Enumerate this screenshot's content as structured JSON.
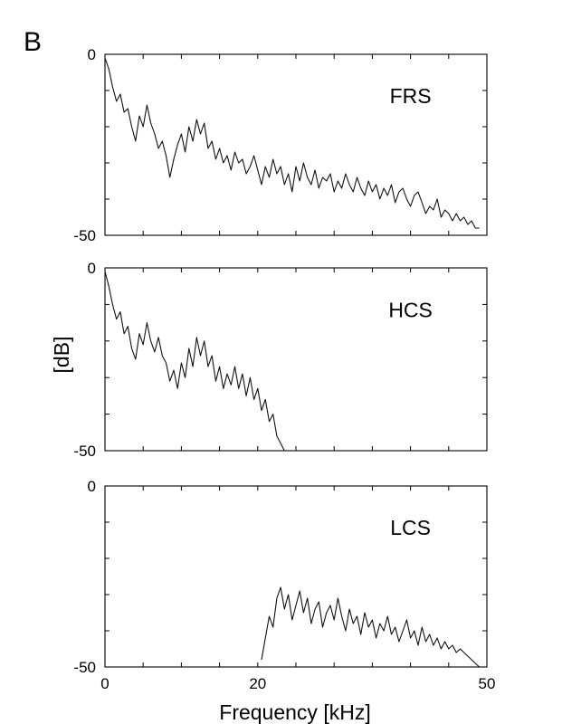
{
  "figure": {
    "panel_letter": "B",
    "ylabel": "[dB]",
    "xlabel": "Frequency [kHz]",
    "line_color": "#111111"
  },
  "chart_data": [
    {
      "type": "line",
      "title": "FRS",
      "xlim": [
        0,
        50
      ],
      "ylim": [
        -50,
        0
      ],
      "x_ticks": [
        0,
        20,
        50
      ],
      "y_ticks": [
        0,
        -50
      ],
      "series": [
        {
          "x": [
            0,
            0.5,
            1,
            1.5,
            2,
            2.5,
            3,
            3.5,
            4,
            4.5,
            5,
            5.5,
            6,
            6.5,
            7,
            7.5,
            8,
            8.5,
            9,
            9.5,
            10,
            10.5,
            11,
            11.5,
            12,
            12.5,
            13,
            13.5,
            14,
            14.5,
            15,
            15.5,
            16,
            16.5,
            17,
            17.5,
            18,
            18.5,
            19,
            19.5,
            20,
            20.5,
            21,
            21.5,
            22,
            22.5,
            23,
            23.5,
            24,
            24.5,
            25,
            25.5,
            26,
            26.5,
            27,
            27.5,
            28,
            28.5,
            29,
            29.5,
            30,
            30.5,
            31,
            31.5,
            32,
            32.5,
            33,
            33.5,
            34,
            34.5,
            35,
            35.5,
            36,
            36.5,
            37,
            37.5,
            38,
            38.5,
            39,
            39.5,
            40,
            40.5,
            41,
            41.5,
            42,
            42.5,
            43,
            43.5,
            44,
            44.5,
            45,
            45.5,
            46,
            46.5,
            47,
            47.5,
            48,
            48.5,
            49
          ],
          "y": [
            -1,
            -4,
            -9,
            -13,
            -11,
            -16,
            -15,
            -20,
            -24,
            -17,
            -20,
            -14,
            -19,
            -22,
            -26,
            -24,
            -28,
            -34,
            -29,
            -25,
            -22,
            -27,
            -20,
            -24,
            -18,
            -22,
            -19,
            -26,
            -24,
            -29,
            -26,
            -30,
            -28,
            -32,
            -27,
            -30,
            -29,
            -33,
            -31,
            -28,
            -32,
            -36,
            -31,
            -34,
            -29,
            -33,
            -31,
            -36,
            -33,
            -38,
            -31,
            -35,
            -30,
            -34,
            -36,
            -32,
            -37,
            -34,
            -35,
            -33,
            -38,
            -35,
            -37,
            -33,
            -36,
            -38,
            -34,
            -37,
            -39,
            -35,
            -38,
            -36,
            -40,
            -37,
            -39,
            -36,
            -41,
            -38,
            -37,
            -40,
            -42,
            -39,
            -38,
            -41,
            -44,
            -42,
            -43,
            -40,
            -45,
            -43,
            -44,
            -46,
            -44,
            -46,
            -45,
            -47,
            -46,
            -48,
            -48
          ]
        }
      ]
    },
    {
      "type": "line",
      "title": "HCS",
      "xlim": [
        0,
        50
      ],
      "ylim": [
        -50,
        0
      ],
      "x_ticks": [
        0,
        20,
        50
      ],
      "y_ticks": [
        0,
        -50
      ],
      "series": [
        {
          "x": [
            0,
            0.5,
            1,
            1.5,
            2,
            2.5,
            3,
            3.5,
            4,
            4.5,
            5,
            5.5,
            6,
            6.5,
            7,
            7.5,
            8,
            8.5,
            9,
            9.5,
            10,
            10.5,
            11,
            11.5,
            12,
            12.5,
            13,
            13.5,
            14,
            14.5,
            15,
            15.5,
            16,
            16.5,
            17,
            17.5,
            18,
            18.5,
            19,
            19.5,
            20,
            20.5,
            21,
            21.5,
            22,
            22.5,
            23,
            23.5
          ],
          "y": [
            -1,
            -5,
            -10,
            -14,
            -12,
            -18,
            -16,
            -22,
            -25,
            -18,
            -21,
            -15,
            -20,
            -23,
            -19,
            -24,
            -26,
            -31,
            -28,
            -33,
            -26,
            -30,
            -22,
            -27,
            -19,
            -24,
            -20,
            -27,
            -24,
            -31,
            -27,
            -33,
            -29,
            -32,
            -27,
            -33,
            -29,
            -35,
            -30,
            -36,
            -33,
            -39,
            -36,
            -42,
            -40,
            -46,
            -48,
            -50
          ]
        }
      ]
    },
    {
      "type": "line",
      "title": "LCS",
      "xlim": [
        0,
        50
      ],
      "ylim": [
        -50,
        0
      ],
      "x_ticks": [
        0,
        20,
        50
      ],
      "y_ticks": [
        0,
        -50
      ],
      "series": [
        {
          "x": [
            20.5,
            21,
            21.5,
            22,
            22.5,
            23,
            23.5,
            24,
            24.5,
            25,
            25.5,
            26,
            26.5,
            27,
            27.5,
            28,
            28.5,
            29,
            29.5,
            30,
            30.5,
            31,
            31.5,
            32,
            32.5,
            33,
            33.5,
            34,
            34.5,
            35,
            35.5,
            36,
            36.5,
            37,
            37.5,
            38,
            38.5,
            39,
            39.5,
            40,
            40.5,
            41,
            41.5,
            42,
            42.5,
            43,
            43.5,
            44,
            44.5,
            45,
            45.5,
            46,
            46.5,
            47,
            47.5,
            48,
            48.5,
            49
          ],
          "y": [
            -48,
            -42,
            -36,
            -39,
            -31,
            -28,
            -34,
            -30,
            -37,
            -33,
            -29,
            -35,
            -31,
            -38,
            -34,
            -32,
            -39,
            -35,
            -33,
            -37,
            -31,
            -36,
            -40,
            -34,
            -38,
            -36,
            -41,
            -35,
            -39,
            -37,
            -42,
            -38,
            -40,
            -36,
            -41,
            -39,
            -43,
            -40,
            -37,
            -42,
            -40,
            -44,
            -39,
            -43,
            -41,
            -44,
            -42,
            -45,
            -43,
            -45,
            -44,
            -46,
            -45,
            -46,
            -47,
            -48,
            -49,
            -50
          ]
        }
      ]
    }
  ]
}
